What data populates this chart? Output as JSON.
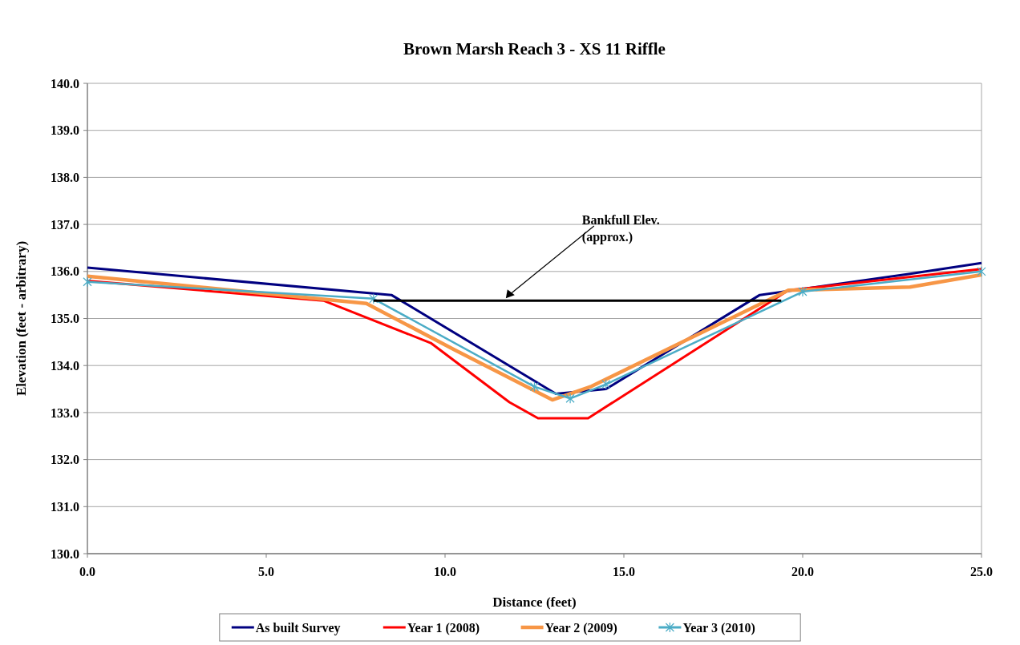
{
  "chart_data": {
    "type": "line",
    "title": "Brown Marsh Reach 3 - XS 11 Riffle",
    "xlabel": "Distance (feet)",
    "ylabel": "Elevation (feet - arbitrary)",
    "xlim": [
      0,
      25
    ],
    "xticks": [
      {
        "value": 0,
        "label": "0.0"
      },
      {
        "value": 5,
        "label": "5.0"
      },
      {
        "value": 10,
        "label": "10.0"
      },
      {
        "value": 15,
        "label": "15.0"
      },
      {
        "value": 20,
        "label": "20.0"
      },
      {
        "value": 25,
        "label": "25.0"
      }
    ],
    "ylim": [
      130,
      140
    ],
    "yticks": [
      {
        "value": 130,
        "label": "130.0"
      },
      {
        "value": 131,
        "label": "131.0"
      },
      {
        "value": 132,
        "label": "132.0"
      },
      {
        "value": 133,
        "label": "133.0"
      },
      {
        "value": 134,
        "label": "134.0"
      },
      {
        "value": 135,
        "label": "135.0"
      },
      {
        "value": 136,
        "label": "136.0"
      },
      {
        "value": 137,
        "label": "137.0"
      },
      {
        "value": 138,
        "label": "138.0"
      },
      {
        "value": 139,
        "label": "139.0"
      },
      {
        "value": 140,
        "label": "140.0"
      }
    ],
    "grid": "y",
    "legend": "bottom",
    "line_style": "solid",
    "series": [
      {
        "name": "As built Survey",
        "color": "#000080",
        "marker": "none",
        "x": [
          0,
          8.5,
          13.1,
          14.5,
          18.8,
          23.0,
          25.0
        ],
        "values": [
          136.08,
          135.5,
          133.4,
          133.5,
          135.5,
          135.95,
          136.18
        ]
      },
      {
        "name": "Year 1 (2008)",
        "color": "#ff0000",
        "marker": "none",
        "x": [
          0,
          6.6,
          9.6,
          11.8,
          12.6,
          14.0,
          19.6,
          25.0
        ],
        "values": [
          135.8,
          135.38,
          134.48,
          133.22,
          132.88,
          132.88,
          135.6,
          136.05
        ]
      },
      {
        "name": "Year 2 (2009)",
        "color": "#f79646",
        "marker": "none",
        "x": [
          0,
          7.8,
          10.25,
          13.0,
          14.1,
          19.6,
          23.0,
          25.0
        ],
        "values": [
          135.9,
          135.32,
          134.34,
          133.27,
          133.56,
          135.6,
          135.67,
          135.93
        ]
      },
      {
        "name": "Year 3 (2010)",
        "color": "#4bacc6",
        "marker": "cross",
        "x": [
          0,
          8.0,
          12.5,
          13.5,
          14.5,
          20.0,
          25.0
        ],
        "values": [
          135.78,
          135.42,
          133.55,
          133.3,
          133.6,
          135.57,
          136.0
        ]
      },
      {
        "color": "#000000",
        "marker": "none",
        "x": [
          8.0,
          19.4
        ],
        "values": [
          135.38,
          135.38
        ]
      }
    ],
    "annotations": [
      {
        "text": "Bankfull Elev.\n(approx.)",
        "x": 11.7,
        "y": 135.38
      }
    ]
  }
}
